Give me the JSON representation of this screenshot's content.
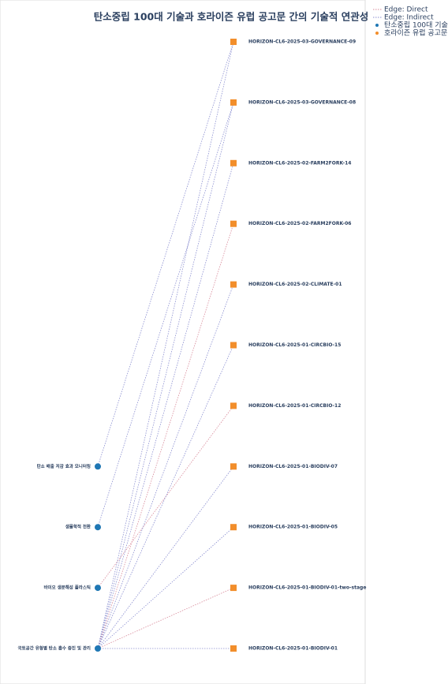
{
  "title": "탄소중립 100대 기술과 호라이즌 유럽 공고문 간의 기술적 연관성",
  "legend": [
    {
      "label": "Edge: Direct",
      "color": "#d88a9a",
      "style": "line"
    },
    {
      "label": "Edge: Indirect",
      "color": "#8a8ed0",
      "style": "line"
    },
    {
      "label": "탄소중립 100대 기술",
      "color": "#1f77b4",
      "style": "marker"
    },
    {
      "label": "호라이즌 유럽 공고문",
      "color": "#f28e2b",
      "style": "marker"
    }
  ],
  "left_nodes": [
    {
      "label": "탄소 배출 저감 효과 모니터링"
    },
    {
      "label": "생물학적 전환"
    },
    {
      "label": "바이오 생분해성 플라스틱"
    },
    {
      "label": "국토공간 유형별 탄소 흡수 증진 및 관리"
    }
  ],
  "right_nodes": [
    {
      "label": "HORIZON-CL6-2025-03-GOVERNANCE-09"
    },
    {
      "label": "HORIZON-CL6-2025-03-GOVERNANCE-08"
    },
    {
      "label": "HORIZON-CL6-2025-02-FARM2FORK-14"
    },
    {
      "label": "HORIZON-CL6-2025-02-FARM2FORK-06"
    },
    {
      "label": "HORIZON-CL6-2025-02-CLIMATE-01"
    },
    {
      "label": "HORIZON-CL6-2025-01-CIRCBIO-15"
    },
    {
      "label": "HORIZON-CL6-2025-01-CIRCBIO-12"
    },
    {
      "label": "HORIZON-CL6-2025-01-BIODIV-07"
    },
    {
      "label": "HORIZON-CL6-2025-01-BIODIV-05"
    },
    {
      "label": "HORIZON-CL6-2025-01-BIODIV-01-two-stage"
    },
    {
      "label": "HORIZON-CL6-2025-01-BIODIV-01"
    }
  ],
  "edges": [
    {
      "from": 0,
      "to": 0,
      "kind": 1
    },
    {
      "from": 1,
      "to": 1,
      "kind": 1
    },
    {
      "from": 2,
      "to": 6,
      "kind": 0
    },
    {
      "from": 3,
      "to": 0,
      "kind": 1
    },
    {
      "from": 3,
      "to": 1,
      "kind": 1
    },
    {
      "from": 3,
      "to": 2,
      "kind": 1
    },
    {
      "from": 3,
      "to": 3,
      "kind": 0
    },
    {
      "from": 3,
      "to": 4,
      "kind": 1
    },
    {
      "from": 3,
      "to": 5,
      "kind": 1
    },
    {
      "from": 3,
      "to": 7,
      "kind": 1
    },
    {
      "from": 3,
      "to": 8,
      "kind": 1
    },
    {
      "from": 3,
      "to": 9,
      "kind": 0
    },
    {
      "from": 3,
      "to": 10,
      "kind": 1
    }
  ]
}
